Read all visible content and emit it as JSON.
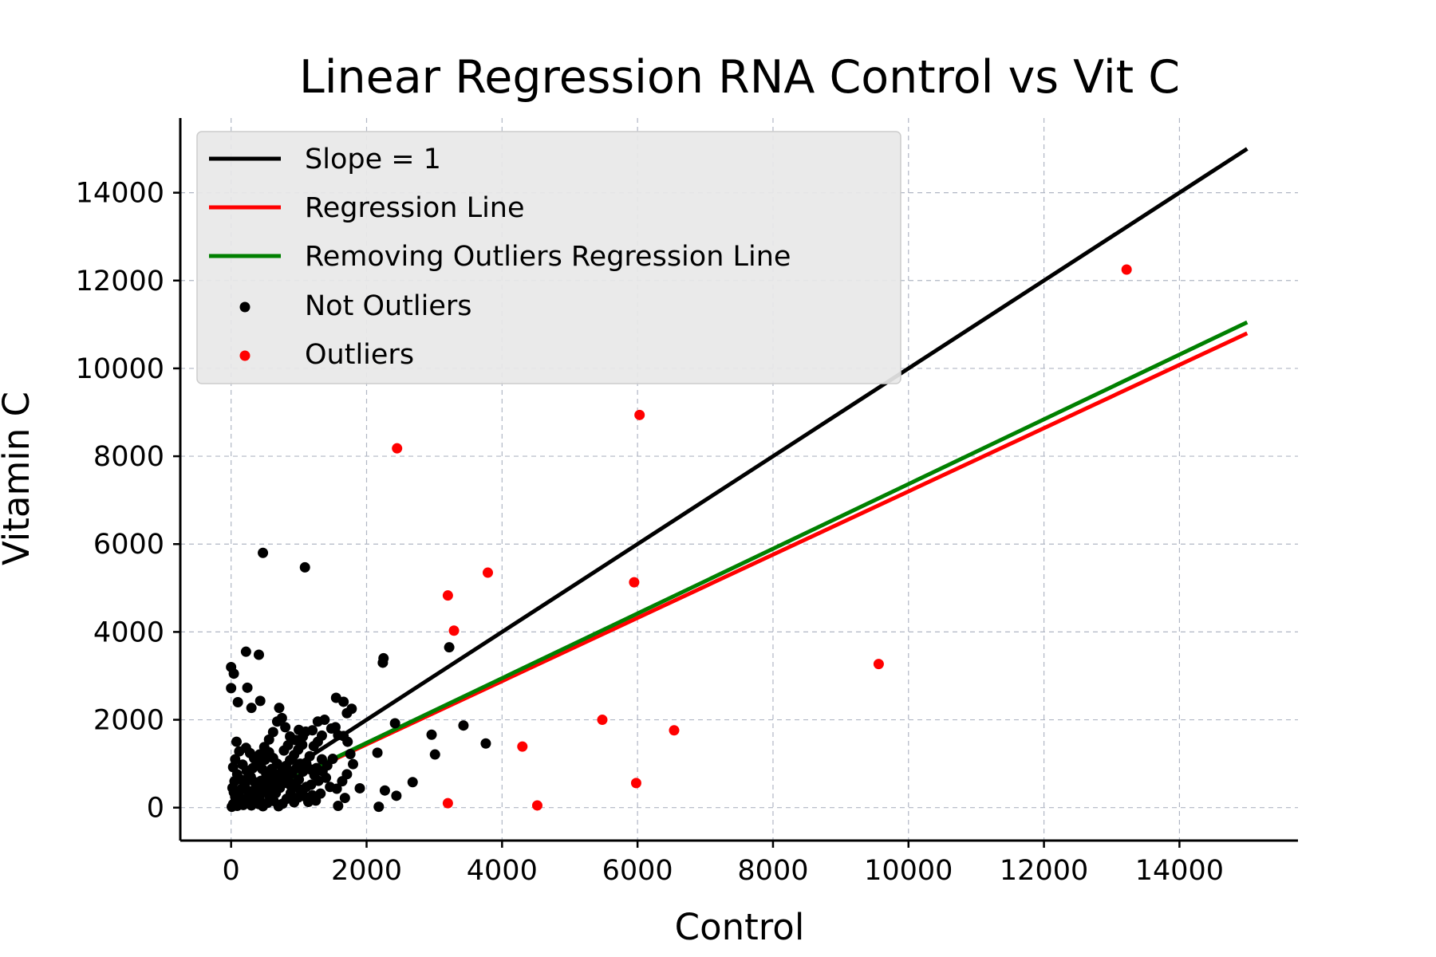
{
  "chart_data": {
    "type": "scatter",
    "title": "Linear Regression RNA Control vs Vit C",
    "xlabel": "Control",
    "ylabel": "Vitamin C",
    "xlim": [
      -750,
      15750
    ],
    "ylim": [
      -750,
      15700
    ],
    "xticks": [
      0,
      2000,
      4000,
      6000,
      8000,
      10000,
      12000,
      14000
    ],
    "yticks": [
      0,
      2000,
      4000,
      6000,
      8000,
      10000,
      12000,
      14000
    ],
    "grid": true,
    "legend_position": "top-left",
    "lines": [
      {
        "name": "Slope = 1",
        "color": "#000000",
        "x": [
          0,
          15000
        ],
        "y": [
          0,
          15000
        ]
      },
      {
        "name": "Regression Line",
        "color": "#ff0000",
        "x": [
          0,
          15000
        ],
        "y": [
          0,
          10800
        ]
      },
      {
        "name": "Removing Outliers Regression Line",
        "color": "#008000",
        "x": [
          0,
          15000
        ],
        "y": [
          0,
          11050
        ]
      }
    ],
    "series": [
      {
        "name": "Not Outliers",
        "color": "#000000",
        "points": [
          [
            470,
            5800
          ],
          [
            1090,
            5470
          ],
          [
            220,
            3550
          ],
          [
            410,
            3480
          ],
          [
            0,
            3200
          ],
          [
            40,
            3050
          ],
          [
            2250,
            3400
          ],
          [
            2240,
            3300
          ],
          [
            3220,
            3650
          ],
          [
            0,
            2720
          ],
          [
            240,
            2730
          ],
          [
            100,
            2400
          ],
          [
            430,
            2430
          ],
          [
            300,
            2270
          ],
          [
            710,
            2270
          ],
          [
            1550,
            2500
          ],
          [
            1660,
            2410
          ],
          [
            1780,
            2250
          ],
          [
            1710,
            2150
          ],
          [
            2420,
            1920
          ],
          [
            3430,
            1870
          ],
          [
            2960,
            1660
          ],
          [
            3760,
            1460
          ],
          [
            3010,
            1210
          ],
          [
            2160,
            1250
          ],
          [
            1900,
            440
          ],
          [
            2680,
            580
          ],
          [
            2270,
            390
          ],
          [
            2440,
            270
          ],
          [
            2180,
            20
          ],
          [
            1280,
            1960
          ],
          [
            1380,
            2000
          ],
          [
            1480,
            1800
          ],
          [
            1540,
            1830
          ],
          [
            1580,
            1650
          ],
          [
            1660,
            1630
          ],
          [
            1720,
            1500
          ],
          [
            1760,
            1220
          ],
          [
            1800,
            990
          ],
          [
            1710,
            760
          ],
          [
            1640,
            600
          ],
          [
            1560,
            430
          ],
          [
            1680,
            220
          ],
          [
            1580,
            40
          ],
          [
            1460,
            470
          ],
          [
            1400,
            680
          ],
          [
            1350,
            830
          ],
          [
            1320,
            320
          ],
          [
            1250,
            160
          ],
          [
            1180,
            520
          ],
          [
            1160,
            1170
          ],
          [
            1220,
            1400
          ],
          [
            1100,
            1730
          ],
          [
            1000,
            1770
          ],
          [
            950,
            1540
          ],
          [
            870,
            1620
          ],
          [
            800,
            1830
          ],
          [
            750,
            2040
          ],
          [
            680,
            1960
          ],
          [
            620,
            1720
          ],
          [
            560,
            1550
          ],
          [
            490,
            1380
          ],
          [
            420,
            1210
          ],
          [
            380,
            1050
          ],
          [
            320,
            900
          ],
          [
            260,
            720
          ],
          [
            210,
            560
          ],
          [
            150,
            420
          ],
          [
            110,
            300
          ],
          [
            70,
            180
          ],
          [
            30,
            80
          ],
          [
            10,
            20
          ],
          [
            80,
            1500
          ],
          [
            120,
            1280
          ],
          [
            60,
            1100
          ],
          [
            30,
            920
          ],
          [
            90,
            760
          ],
          [
            140,
            640
          ],
          [
            200,
            500
          ],
          [
            250,
            380
          ],
          [
            310,
            260
          ],
          [
            360,
            160
          ],
          [
            410,
            80
          ],
          [
            470,
            30
          ],
          [
            540,
            110
          ],
          [
            600,
            220
          ],
          [
            660,
            330
          ],
          [
            720,
            450
          ],
          [
            780,
            560
          ],
          [
            840,
            670
          ],
          [
            900,
            780
          ],
          [
            960,
            890
          ],
          [
            1020,
            1000
          ],
          [
            1060,
            820
          ],
          [
            1000,
            640
          ],
          [
            940,
            480
          ],
          [
            880,
            330
          ],
          [
            820,
            200
          ],
          [
            760,
            90
          ],
          [
            700,
            30
          ],
          [
            640,
            520
          ],
          [
            580,
            640
          ],
          [
            520,
            760
          ],
          [
            460,
            880
          ],
          [
            400,
            1000
          ],
          [
            340,
            1120
          ],
          [
            280,
            1240
          ],
          [
            220,
            1360
          ],
          [
            170,
            980
          ],
          [
            230,
            840
          ],
          [
            290,
            700
          ],
          [
            350,
            580
          ],
          [
            430,
            470
          ],
          [
            500,
            360
          ],
          [
            570,
            260
          ],
          [
            630,
            150
          ],
          [
            690,
            710
          ],
          [
            750,
            830
          ],
          [
            810,
            950
          ],
          [
            870,
            1080
          ],
          [
            930,
            1200
          ],
          [
            990,
            1320
          ],
          [
            1050,
            1430
          ],
          [
            1110,
            1000
          ],
          [
            1170,
            870
          ],
          [
            1230,
            740
          ],
          [
            1290,
            610
          ],
          [
            1110,
            470
          ],
          [
            1050,
            340
          ],
          [
            990,
            230
          ],
          [
            930,
            120
          ],
          [
            870,
            520
          ],
          [
            680,
            1000
          ],
          [
            620,
            1130
          ],
          [
            560,
            1260
          ],
          [
            500,
            1090
          ],
          [
            440,
            610
          ],
          [
            380,
            500
          ],
          [
            320,
            380
          ],
          [
            260,
            270
          ],
          [
            200,
            170
          ],
          [
            140,
            80
          ],
          [
            90,
            40
          ],
          [
            50,
            600
          ],
          [
            20,
            450
          ],
          [
            40,
            350
          ],
          [
            60,
            250
          ],
          [
            100,
            150
          ],
          [
            180,
            60
          ],
          [
            240,
            100
          ],
          [
            300,
            50
          ],
          [
            360,
            330
          ],
          [
            420,
            230
          ],
          [
            480,
            560
          ],
          [
            540,
            420
          ],
          [
            600,
            880
          ],
          [
            660,
            760
          ],
          [
            720,
            640
          ],
          [
            780,
            1300
          ],
          [
            840,
            1420
          ],
          [
            900,
            1100
          ],
          [
            960,
            560
          ],
          [
            1020,
            410
          ],
          [
            1080,
            260
          ],
          [
            1140,
            130
          ],
          [
            1200,
            280
          ],
          [
            1260,
            900
          ],
          [
            1340,
            1100
          ],
          [
            1420,
            960
          ],
          [
            1500,
            1110
          ],
          [
            1280,
            1500
          ],
          [
            1340,
            1640
          ],
          [
            1200,
            1760
          ],
          [
            1060,
            1620
          ]
        ]
      },
      {
        "name": "Outliers",
        "color": "#ff0000",
        "points": [
          [
            13220,
            12250
          ],
          [
            6030,
            8940
          ],
          [
            2450,
            8180
          ],
          [
            3790,
            5350
          ],
          [
            5950,
            5130
          ],
          [
            3200,
            4830
          ],
          [
            3290,
            4030
          ],
          [
            9560,
            3270
          ],
          [
            5480,
            2000
          ],
          [
            6540,
            1760
          ],
          [
            4300,
            1390
          ],
          [
            5980,
            560
          ],
          [
            3200,
            100
          ],
          [
            4520,
            50
          ]
        ]
      }
    ]
  }
}
